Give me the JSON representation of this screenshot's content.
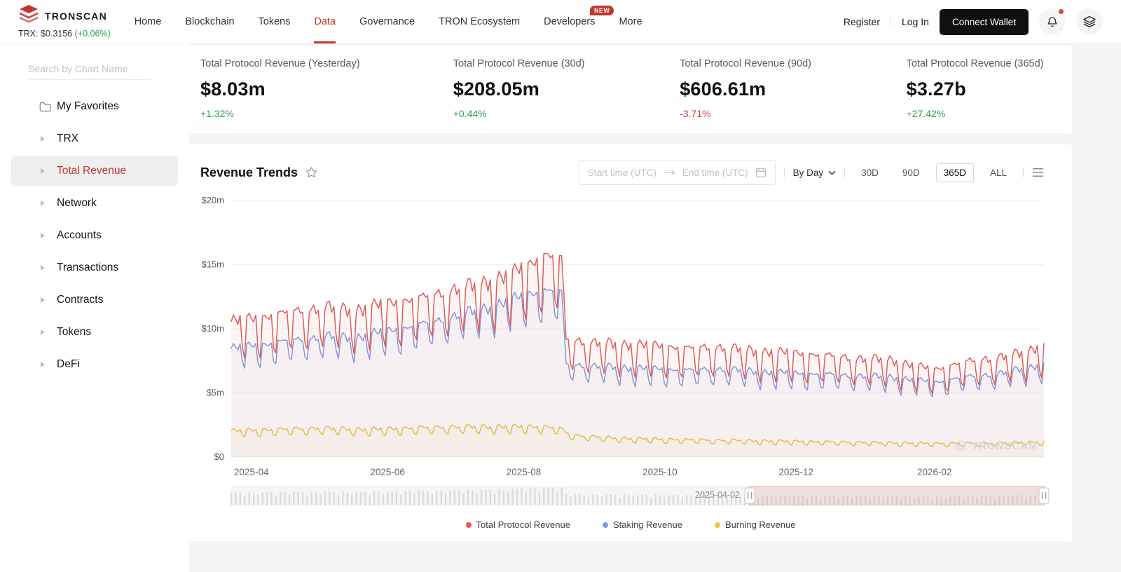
{
  "header": {
    "brand": "TRONSCAN",
    "trx_label": "TRX: $0.3156",
    "trx_change": "(+0.06%)",
    "nav": [
      {
        "label": "Home"
      },
      {
        "label": "Blockchain"
      },
      {
        "label": "Tokens"
      },
      {
        "label": "Data",
        "active": true
      },
      {
        "label": "Governance"
      },
      {
        "label": "TRON Ecosystem"
      },
      {
        "label": "Developers",
        "badge": "NEW"
      },
      {
        "label": "More"
      }
    ],
    "register": "Register",
    "login": "Log In",
    "connect_wallet": "Connect Wallet"
  },
  "sidebar": {
    "search_placeholder": "Search by Chart Name",
    "items": [
      {
        "label": "My Favorites",
        "icon": "folder"
      },
      {
        "label": "TRX"
      },
      {
        "label": "Total Revenue",
        "active": true
      },
      {
        "label": "Network"
      },
      {
        "label": "Accounts"
      },
      {
        "label": "Transactions"
      },
      {
        "label": "Contracts"
      },
      {
        "label": "Tokens"
      },
      {
        "label": "DeFi"
      }
    ]
  },
  "stats": [
    {
      "label": "Total Protocol Revenue (Yesterday)",
      "value": "$8.03m",
      "change": "+1.32%",
      "direction": "up"
    },
    {
      "label": "Total Protocol Revenue (30d)",
      "value": "$208.05m",
      "change": "+0.44%",
      "direction": "up"
    },
    {
      "label": "Total Protocol Revenue (90d)",
      "value": "$606.61m",
      "change": "-3.71%",
      "direction": "down"
    },
    {
      "label": "Total Protocol Revenue (365d)",
      "value": "$3.27b",
      "change": "+27.42%",
      "direction": "up"
    }
  ],
  "chart": {
    "title": "Revenue Trends",
    "range_picker": {
      "start_placeholder": "Start time (UTC)",
      "end_placeholder": "End time (UTC)"
    },
    "interval_label": "By Day",
    "active_range": "365D",
    "zoom_label": "2025-04-02",
    "watermark": "TRONSCAN"
  },
  "chart_data": {
    "type": "line",
    "title": "Revenue Trends",
    "unit": "million USD per day",
    "ylim": [
      0,
      20
    ],
    "days": 365,
    "grid": true,
    "legend_position": "bottom",
    "y_ticks": [
      {
        "label": "$0",
        "value": 0
      },
      {
        "label": "$5m",
        "value": 5
      },
      {
        "label": "$10m",
        "value": 10
      },
      {
        "label": "$15m",
        "value": 15
      },
      {
        "label": "$20m",
        "value": 20
      }
    ],
    "x_ticks": [
      {
        "label": "2025-04",
        "day": 9
      },
      {
        "label": "2025-06",
        "day": 70
      },
      {
        "label": "2025-08",
        "day": 131
      },
      {
        "label": "2025-10",
        "day": 192
      },
      {
        "label": "2025-12",
        "day": 253
      },
      {
        "label": "2026-02",
        "day": 315
      }
    ],
    "range_buttons": [
      "30D",
      "90D",
      "365D",
      "ALL"
    ],
    "zoom_start_fraction": 0.638,
    "series": [
      {
        "name": "Total Protocol Revenue",
        "color": "#e25b54",
        "fill": "rgba(226,91,84,0.06)",
        "keypoints": [
          [
            0,
            9.6
          ],
          [
            14,
            9.9
          ],
          [
            28,
            10.3
          ],
          [
            42,
            10.6
          ],
          [
            56,
            10.4
          ],
          [
            70,
            10.9
          ],
          [
            84,
            11.2
          ],
          [
            98,
            11.8
          ],
          [
            112,
            12.3
          ],
          [
            125,
            12.9
          ],
          [
            133,
            13.6
          ],
          [
            140,
            14.3
          ],
          [
            148,
            14.0
          ],
          [
            150,
            8.4
          ],
          [
            162,
            8.1
          ],
          [
            176,
            8.0
          ],
          [
            190,
            7.9
          ],
          [
            205,
            7.7
          ],
          [
            220,
            7.8
          ],
          [
            235,
            7.5
          ],
          [
            250,
            7.4
          ],
          [
            265,
            7.2
          ],
          [
            280,
            7.0
          ],
          [
            295,
            6.9
          ],
          [
            305,
            6.5
          ],
          [
            315,
            6.2
          ],
          [
            325,
            6.6
          ],
          [
            335,
            6.9
          ],
          [
            345,
            7.1
          ],
          [
            355,
            7.4
          ],
          [
            364,
            8.0
          ]
        ],
        "week_pattern": [
          0.1,
          0.13,
          0.12,
          0.07,
          0.11,
          -0.13,
          -0.2
        ]
      },
      {
        "name": "Staking Revenue",
        "color": "#7d9ce0",
        "fill": "rgba(125,156,224,0.05)",
        "keypoints": [
          [
            0,
            8.0
          ],
          [
            14,
            8.3
          ],
          [
            28,
            8.6
          ],
          [
            42,
            8.9
          ],
          [
            56,
            8.8
          ],
          [
            70,
            9.3
          ],
          [
            84,
            9.7
          ],
          [
            98,
            10.3
          ],
          [
            112,
            10.9
          ],
          [
            125,
            11.5
          ],
          [
            133,
            12.0
          ],
          [
            140,
            12.3
          ],
          [
            148,
            12.1
          ],
          [
            150,
            6.9
          ],
          [
            162,
            6.7
          ],
          [
            176,
            6.6
          ],
          [
            190,
            6.5
          ],
          [
            205,
            6.4
          ],
          [
            220,
            6.5
          ],
          [
            235,
            6.3
          ],
          [
            250,
            6.2
          ],
          [
            265,
            6.1
          ],
          [
            280,
            6.0
          ],
          [
            295,
            5.9
          ],
          [
            305,
            5.7
          ],
          [
            315,
            5.5
          ],
          [
            325,
            5.8
          ],
          [
            335,
            6.0
          ],
          [
            345,
            6.2
          ],
          [
            355,
            6.5
          ],
          [
            364,
            6.9
          ]
        ],
        "week_pattern": [
          0.06,
          0.08,
          0.07,
          0.04,
          0.06,
          -0.09,
          -0.14
        ]
      },
      {
        "name": "Burning Revenue",
        "color": "#eec643",
        "fill": "rgba(238,198,67,0.05)",
        "keypoints": [
          [
            0,
            1.9
          ],
          [
            20,
            2.0
          ],
          [
            40,
            2.1
          ],
          [
            60,
            2.0
          ],
          [
            80,
            2.1
          ],
          [
            100,
            2.2
          ],
          [
            120,
            2.2
          ],
          [
            140,
            2.2
          ],
          [
            147,
            2.1
          ],
          [
            152,
            1.6
          ],
          [
            170,
            1.4
          ],
          [
            190,
            1.3
          ],
          [
            210,
            1.25
          ],
          [
            230,
            1.2
          ],
          [
            250,
            1.15
          ],
          [
            270,
            1.1
          ],
          [
            290,
            1.05
          ],
          [
            310,
            1.0
          ],
          [
            330,
            1.0
          ],
          [
            350,
            1.05
          ],
          [
            364,
            1.1
          ]
        ],
        "week_pattern": [
          0.1,
          0.15,
          0.09,
          0.03,
          0.09,
          -0.12,
          -0.18
        ]
      }
    ]
  }
}
